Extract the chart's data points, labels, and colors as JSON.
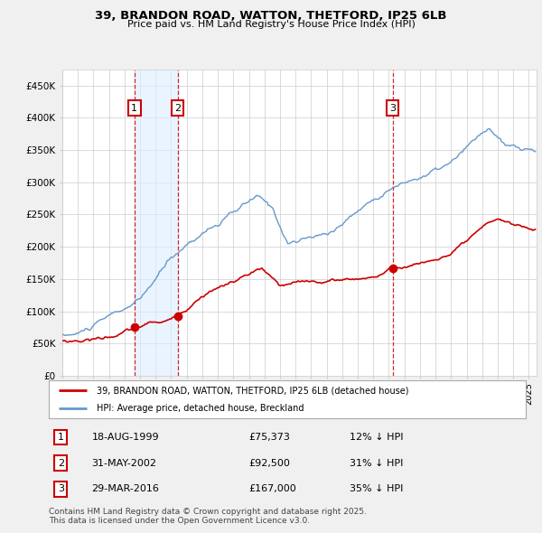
{
  "title_line1": "39, BRANDON ROAD, WATTON, THETFORD, IP25 6LB",
  "title_line2": "Price paid vs. HM Land Registry's House Price Index (HPI)",
  "ylim": [
    0,
    475000
  ],
  "yticks": [
    0,
    50000,
    100000,
    150000,
    200000,
    250000,
    300000,
    350000,
    400000,
    450000
  ],
  "ytick_labels": [
    "£0",
    "£50K",
    "£100K",
    "£150K",
    "£200K",
    "£250K",
    "£300K",
    "£350K",
    "£400K",
    "£450K"
  ],
  "sale_color": "#cc0000",
  "hpi_color": "#6699cc",
  "background_color": "#f0f0f0",
  "plot_bg_color": "#ffffff",
  "annotation_box_color": "#cc0000",
  "shade_color": "#ddeeff",
  "sales": [
    {
      "date_num": 1999.63,
      "price": 75373,
      "label": "1"
    },
    {
      "date_num": 2002.41,
      "price": 92500,
      "label": "2"
    },
    {
      "date_num": 2016.24,
      "price": 167000,
      "label": "3"
    }
  ],
  "sale_annotations": [
    {
      "num": "1",
      "date": "18-AUG-1999",
      "price": "£75,373",
      "hpi_diff": "12% ↓ HPI"
    },
    {
      "num": "2",
      "date": "31-MAY-2002",
      "price": "£92,500",
      "hpi_diff": "31% ↓ HPI"
    },
    {
      "num": "3",
      "date": "29-MAR-2016",
      "price": "£167,000",
      "hpi_diff": "35% ↓ HPI"
    }
  ],
  "legend_label_sale": "39, BRANDON ROAD, WATTON, THETFORD, IP25 6LB (detached house)",
  "legend_label_hpi": "HPI: Average price, detached house, Breckland",
  "footer_text": "Contains HM Land Registry data © Crown copyright and database right 2025.\nThis data is licensed under the Open Government Licence v3.0.",
  "vline_dates": [
    1999.63,
    2002.41,
    2016.24
  ],
  "shade_pairs": [
    [
      1999.63,
      2002.41
    ]
  ],
  "xlim": [
    1995,
    2025.5
  ],
  "xtick_start": 1995,
  "xtick_end": 2025
}
